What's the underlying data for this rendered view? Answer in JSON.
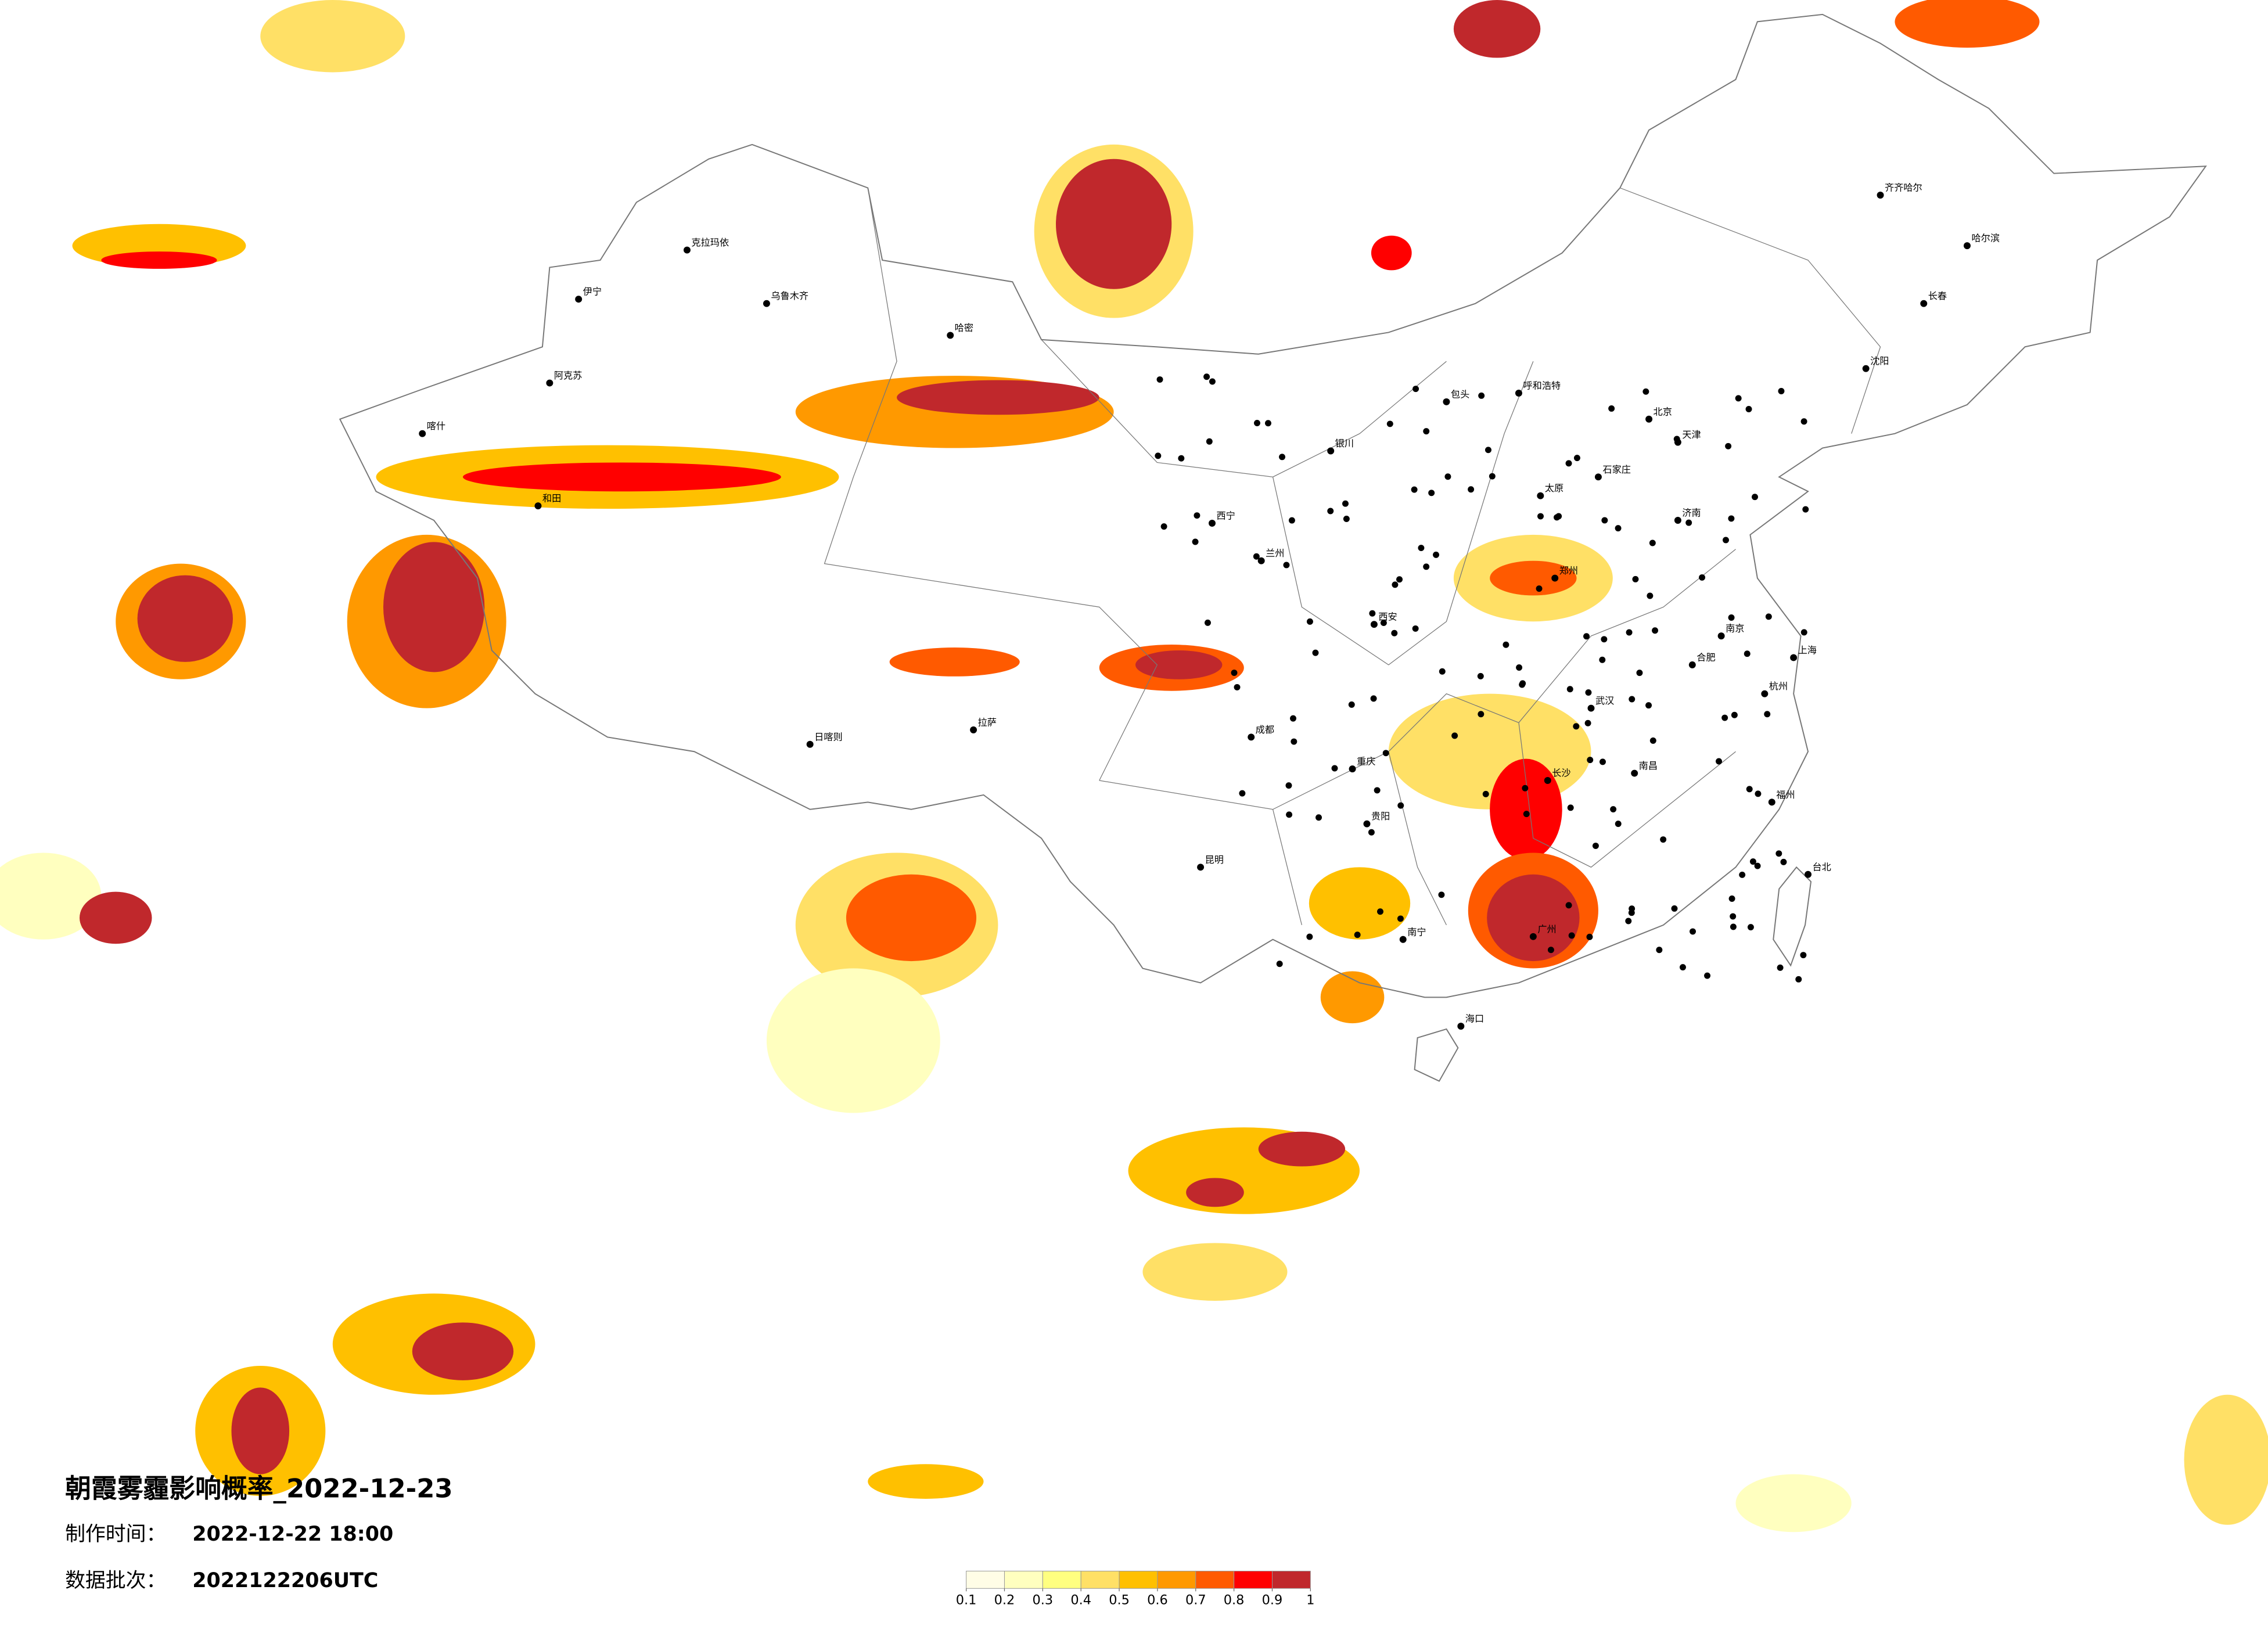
{
  "title": "朝霞雾霾影响概率_2022-12-23",
  "info": [
    {
      "label": "制作时间：",
      "value": "2022-12-22 18:00"
    },
    {
      "label": "数据批次：",
      "value": "2022122206UTC"
    }
  ],
  "colorbar": {
    "ticks": [
      0.1,
      0.2,
      0.3,
      0.4,
      0.5,
      0.6,
      0.7,
      0.8,
      0.9,
      1
    ],
    "colors": [
      "#fffde6",
      "#ffffbf",
      "#ffff80",
      "#ffe066",
      "#ffc000",
      "#ff9900",
      "#ff5a00",
      "#ff0000",
      "#c0282c"
    ]
  },
  "cities": [
    "乌鲁木齐",
    "克拉玛依",
    "伊宁",
    "阿克苏",
    "喀什",
    "和田",
    "哈密",
    "拉萨",
    "日喀则",
    "西宁",
    "兰州",
    "银川",
    "呼和浩特",
    "包头",
    "西安",
    "成都",
    "重庆",
    "贵阳",
    "昆明",
    "南宁",
    "广州",
    "长沙",
    "武汉",
    "郑州",
    "济南",
    "北京",
    "天津",
    "石家庄",
    "太原",
    "南京",
    "上海",
    "杭州",
    "合肥",
    "南昌",
    "福州",
    "哈尔滨",
    "长春",
    "沈阳",
    "齐齐哈尔",
    "海口",
    "台北"
  ]
}
